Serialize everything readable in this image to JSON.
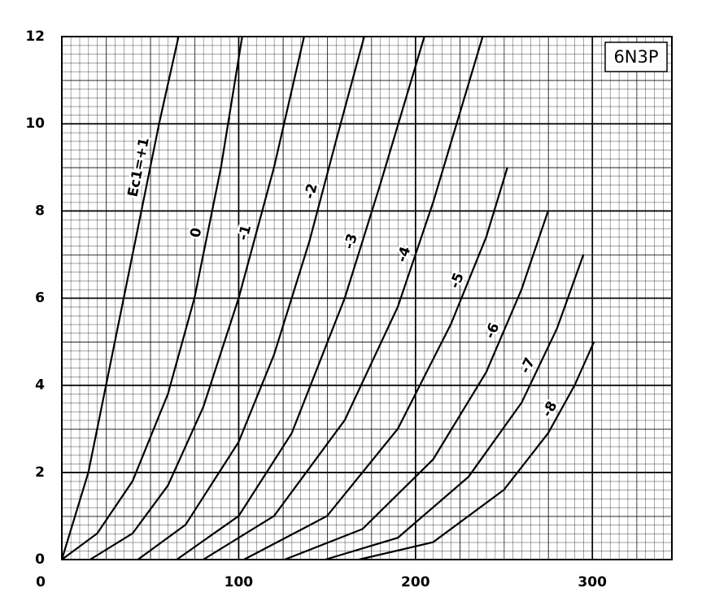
{
  "chart_data": {
    "type": "line",
    "title": "6N3P",
    "xlim": [
      0,
      345
    ],
    "xticks": [
      0,
      100,
      200,
      300
    ],
    "ylim": [
      0,
      12
    ],
    "yticks": [
      0,
      2,
      4,
      6,
      8,
      10,
      12
    ],
    "grid": true,
    "series": [
      {
        "name": "Ec1=+1",
        "color": "#000000",
        "x": [
          0,
          15,
          30,
          45,
          55,
          66
        ],
        "values": [
          0,
          2,
          5,
          8,
          10,
          12
        ]
      },
      {
        "name": "0",
        "color": "#000000",
        "x": [
          0,
          20,
          40,
          60,
          75,
          90,
          102
        ],
        "values": [
          0,
          0.6,
          1.8,
          3.8,
          6,
          9,
          12
        ]
      },
      {
        "name": "-1",
        "color": "#000000",
        "x": [
          16,
          40,
          60,
          80,
          100,
          120,
          137
        ],
        "values": [
          0,
          0.6,
          1.7,
          3.5,
          6,
          9,
          12
        ]
      },
      {
        "name": "-2",
        "color": "#000000",
        "x": [
          43,
          70,
          100,
          120,
          140,
          155,
          171
        ],
        "values": [
          0,
          0.8,
          2.7,
          4.7,
          7.3,
          9.6,
          12
        ]
      },
      {
        "name": "-3",
        "color": "#000000",
        "x": [
          65,
          100,
          130,
          160,
          180,
          205
        ],
        "values": [
          0,
          1,
          2.9,
          6,
          8.6,
          12
        ]
      },
      {
        "name": "-4",
        "color": "#000000",
        "x": [
          80,
          120,
          160,
          190,
          210,
          238
        ],
        "values": [
          0,
          1,
          3.2,
          5.8,
          8.2,
          12
        ]
      },
      {
        "name": "-5",
        "color": "#000000",
        "x": [
          103,
          150,
          190,
          220,
          240,
          252
        ],
        "values": [
          0,
          1,
          3,
          5.4,
          7.4,
          9
        ]
      },
      {
        "name": "-6",
        "color": "#000000",
        "x": [
          126,
          170,
          210,
          240,
          260,
          275
        ],
        "values": [
          0,
          0.7,
          2.3,
          4.3,
          6.2,
          8
        ]
      },
      {
        "name": "-7",
        "color": "#000000",
        "x": [
          149,
          190,
          230,
          260,
          280,
          295
        ],
        "values": [
          0,
          0.5,
          1.9,
          3.6,
          5.3,
          7
        ]
      },
      {
        "name": "-8",
        "color": "#000000",
        "x": [
          168,
          210,
          250,
          275,
          290,
          301
        ],
        "values": [
          0,
          0.4,
          1.6,
          2.9,
          4,
          5
        ]
      }
    ]
  }
}
